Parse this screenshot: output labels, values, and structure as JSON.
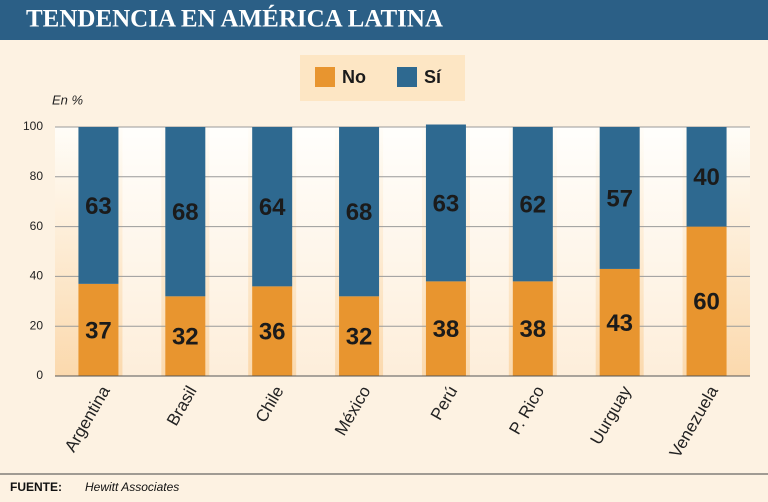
{
  "chart_data": {
    "type": "stacked-bar",
    "title": "TENDENCIA EN AMÉRICA LATINA",
    "y_label": "En %",
    "categories": [
      "Argentina",
      "Brasil",
      "Chile",
      "México",
      "Perú",
      "P. Rico",
      "Uurguay",
      "Venezuela"
    ],
    "series": [
      {
        "name": "No",
        "color": "#e8952f",
        "values": [
          37,
          32,
          36,
          32,
          38,
          38,
          43,
          60
        ]
      },
      {
        "name": "Sí",
        "color": "#2e6990",
        "values": [
          63,
          68,
          64,
          68,
          63,
          62,
          57,
          40
        ]
      }
    ],
    "ylim": [
      0,
      100
    ],
    "yticks": [
      0,
      20,
      40,
      60,
      80,
      100
    ],
    "grid": true,
    "source_label": "FUENTE:",
    "source": "Hewitt Associates"
  }
}
